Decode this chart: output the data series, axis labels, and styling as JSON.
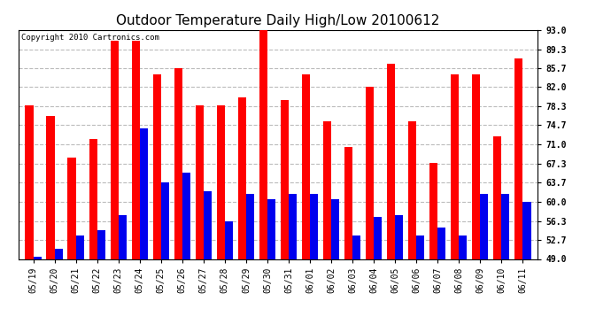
{
  "title": "Outdoor Temperature Daily High/Low 20100612",
  "copyright": "Copyright 2010 Cartronics.com",
  "categories": [
    "05/19",
    "05/20",
    "05/21",
    "05/22",
    "05/23",
    "05/24",
    "05/25",
    "05/26",
    "05/27",
    "05/28",
    "05/29",
    "05/30",
    "05/31",
    "06/01",
    "06/02",
    "06/03",
    "06/04",
    "06/05",
    "06/06",
    "06/07",
    "06/08",
    "06/09",
    "06/10",
    "06/11"
  ],
  "highs": [
    78.5,
    76.5,
    68.5,
    72.0,
    91.0,
    91.0,
    84.5,
    85.7,
    78.5,
    78.5,
    80.0,
    93.0,
    79.5,
    84.5,
    75.5,
    70.5,
    82.0,
    86.5,
    75.5,
    67.5,
    84.5,
    84.5,
    72.5,
    87.5
  ],
  "lows": [
    49.5,
    51.0,
    53.5,
    54.5,
    57.5,
    74.0,
    63.7,
    65.5,
    62.0,
    56.3,
    61.5,
    60.5,
    61.5,
    61.5,
    60.5,
    53.5,
    57.0,
    57.5,
    53.5,
    55.0,
    53.5,
    61.5,
    61.5,
    60.0
  ],
  "high_color": "#ff0000",
  "low_color": "#0000ee",
  "bg_color": "#ffffff",
  "grid_color": "#bbbbbb",
  "ymin": 49.0,
  "ymax": 93.0,
  "yticks": [
    49.0,
    52.7,
    56.3,
    60.0,
    63.7,
    67.3,
    71.0,
    74.7,
    78.3,
    82.0,
    85.7,
    89.3,
    93.0
  ],
  "title_fontsize": 11,
  "copyright_fontsize": 6.5,
  "tick_fontsize": 7,
  "bar_width": 0.38
}
